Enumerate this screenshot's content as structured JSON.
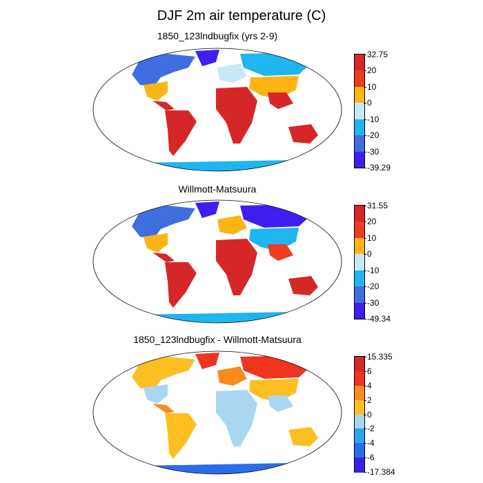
{
  "title": "DJF 2m air temperature (C)",
  "panels": [
    {
      "title": "1850_123lndbugfix (yrs 2-9)",
      "colorbar": {
        "labels": [
          "32.75",
          "20",
          "10",
          "0",
          "-10",
          "-20",
          "-30",
          "-39.29"
        ],
        "colors": [
          "#d62728",
          "#ee3c23",
          "#fdb515",
          "#c6e8f7",
          "#1eb5f0",
          "#3f6ee0",
          "#3e1ff0"
        ]
      }
    },
    {
      "title": "Willmott-Matsuura",
      "colorbar": {
        "labels": [
          "31.55",
          "20",
          "10",
          "0",
          "-10",
          "-20",
          "-30",
          "-49.34"
        ],
        "colors": [
          "#d62728",
          "#ee3c23",
          "#fdb515",
          "#c6e8f7",
          "#1eb5f0",
          "#3f6ee0",
          "#3e1ff0"
        ]
      }
    },
    {
      "title": "1850_123lndbugfix - Willmott-Matsuura",
      "colorbar": {
        "labels": [
          "15.335",
          "6",
          "4",
          "2",
          "0",
          "-2",
          "-4",
          "-6",
          "-17.384"
        ],
        "colors": [
          "#d62728",
          "#f0341f",
          "#f78b1b",
          "#fdbe22",
          "#a9d6f0",
          "#2ea4ee",
          "#2a6de8",
          "#3a21e8"
        ]
      }
    }
  ]
}
